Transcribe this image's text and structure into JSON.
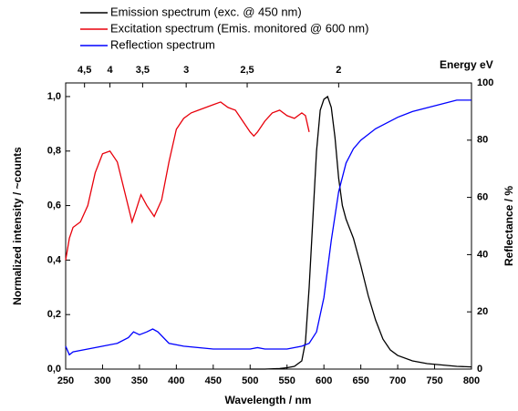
{
  "chart_data": {
    "type": "line",
    "xlabel": "Wavelength / nm",
    "ylabel": "Normalized intensity / ~counts",
    "y2label": "Reflectance / %",
    "x2label": "Energy eV",
    "xlim": [
      250,
      800
    ],
    "xticks": [
      250,
      300,
      350,
      400,
      450,
      500,
      550,
      600,
      650,
      700,
      750,
      800
    ],
    "ylim": [
      0,
      1.05
    ],
    "yticks": [
      {
        "value": 0,
        "label": "0,0"
      },
      {
        "value": 0.2,
        "label": "0,2"
      },
      {
        "value": 0.4,
        "label": "0,4"
      },
      {
        "value": 0.6,
        "label": "0,6"
      },
      {
        "value": 0.8,
        "label": "0,8"
      },
      {
        "value": 1.0,
        "label": "1,0"
      }
    ],
    "y2lim": [
      0,
      100
    ],
    "y2ticks": [
      0,
      20,
      40,
      60,
      80,
      100
    ],
    "x2ticks": [
      {
        "value": 4.5,
        "label": "4,5"
      },
      4,
      {
        "value": 3.5,
        "label": "3,5"
      },
      3,
      {
        "value": 2.5,
        "label": "2,5"
      },
      2
    ],
    "legend": "top-left",
    "series": [
      {
        "name": "Emission spectrum (exc. @ 450 nm)",
        "color": "#000000",
        "x": [
          500,
          520,
          540,
          550,
          560,
          570,
          575,
          580,
          585,
          590,
          595,
          600,
          605,
          610,
          615,
          620,
          625,
          630,
          640,
          650,
          660,
          670,
          680,
          690,
          700,
          720,
          740,
          760,
          780,
          800
        ],
        "values": [
          0,
          0,
          0.002,
          0.005,
          0.01,
          0.03,
          0.1,
          0.3,
          0.55,
          0.8,
          0.95,
          0.99,
          1.0,
          0.96,
          0.85,
          0.7,
          0.6,
          0.55,
          0.48,
          0.38,
          0.27,
          0.18,
          0.11,
          0.07,
          0.05,
          0.03,
          0.02,
          0.015,
          0.01,
          0.008
        ]
      },
      {
        "name": "Excitation spectrum (Emis. monitored @ 600 nm)",
        "color": "#e8000b",
        "x": [
          250,
          255,
          260,
          270,
          280,
          290,
          300,
          310,
          320,
          330,
          340,
          345,
          352,
          360,
          370,
          380,
          390,
          400,
          410,
          420,
          430,
          440,
          450,
          460,
          470,
          480,
          490,
          500,
          505,
          510,
          520,
          530,
          540,
          550,
          560,
          570,
          575,
          580
        ],
        "values": [
          0.4,
          0.48,
          0.52,
          0.54,
          0.6,
          0.72,
          0.79,
          0.8,
          0.76,
          0.65,
          0.54,
          0.58,
          0.64,
          0.6,
          0.56,
          0.62,
          0.76,
          0.88,
          0.92,
          0.94,
          0.95,
          0.96,
          0.97,
          0.98,
          0.96,
          0.95,
          0.91,
          0.87,
          0.855,
          0.87,
          0.91,
          0.94,
          0.95,
          0.93,
          0.92,
          0.94,
          0.93,
          0.87
        ]
      },
      {
        "name": "Reflection spectrum",
        "color": "#0000ff",
        "axis": "y2",
        "x": [
          250,
          255,
          260,
          280,
          300,
          320,
          335,
          342,
          350,
          360,
          368,
          375,
          390,
          410,
          450,
          500,
          510,
          520,
          550,
          570,
          580,
          590,
          600,
          610,
          620,
          630,
          640,
          650,
          670,
          700,
          720,
          750,
          780,
          800
        ],
        "values": [
          8,
          5,
          6,
          7,
          8,
          9,
          11,
          13,
          12,
          13,
          14,
          13,
          9,
          8,
          7,
          7,
          7.5,
          7,
          7,
          8,
          9,
          13,
          25,
          45,
          62,
          72,
          77,
          80,
          84,
          88,
          90,
          92,
          94,
          94
        ]
      }
    ]
  }
}
